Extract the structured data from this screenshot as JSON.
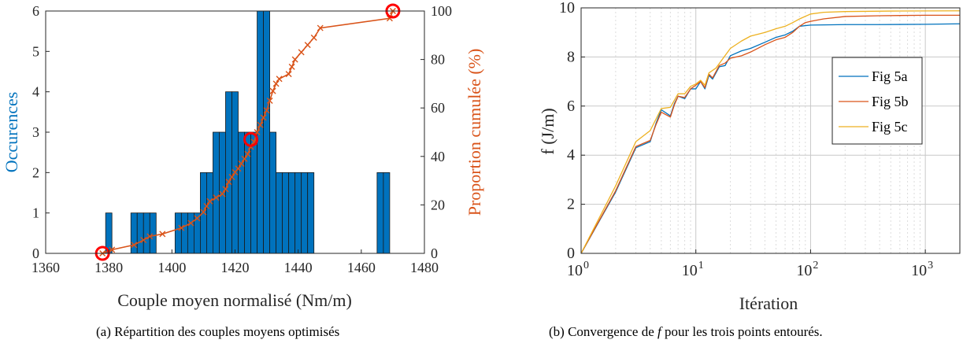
{
  "chart_data": [
    {
      "type": "bar",
      "xlabel": "Couple moyen normalisé (Nm/m)",
      "ylabel": "Occurences",
      "ylabel_right": "Proportion cumulée (%)",
      "xlim": [
        1360,
        1480
      ],
      "ylim": [
        0,
        6
      ],
      "ylim_right": [
        0,
        100
      ],
      "xticks": [
        "1360",
        "1380",
        "1400",
        "1420",
        "1440",
        "1460",
        "1480"
      ],
      "yticks": [
        "0",
        "1",
        "2",
        "3",
        "4",
        "5",
        "6"
      ],
      "yticks_right": [
        "0",
        "20",
        "40",
        "60",
        "80",
        "100"
      ],
      "bar_color": "#0072BD",
      "bin_width": 2,
      "bars": [
        {
          "x": 1380,
          "y": 1
        },
        {
          "x": 1388,
          "y": 1
        },
        {
          "x": 1390,
          "y": 1
        },
        {
          "x": 1392,
          "y": 1
        },
        {
          "x": 1394,
          "y": 1
        },
        {
          "x": 1402,
          "y": 1
        },
        {
          "x": 1404,
          "y": 1
        },
        {
          "x": 1406,
          "y": 1
        },
        {
          "x": 1408,
          "y": 1
        },
        {
          "x": 1410,
          "y": 2
        },
        {
          "x": 1412,
          "y": 2
        },
        {
          "x": 1414,
          "y": 3
        },
        {
          "x": 1416,
          "y": 3
        },
        {
          "x": 1418,
          "y": 4
        },
        {
          "x": 1420,
          "y": 4
        },
        {
          "x": 1422,
          "y": 3
        },
        {
          "x": 1424,
          "y": 3
        },
        {
          "x": 1426,
          "y": 3
        },
        {
          "x": 1428,
          "y": 6
        },
        {
          "x": 1430,
          "y": 6
        },
        {
          "x": 1432,
          "y": 3
        },
        {
          "x": 1434,
          "y": 2
        },
        {
          "x": 1436,
          "y": 2
        },
        {
          "x": 1438,
          "y": 2
        },
        {
          "x": 1440,
          "y": 2
        },
        {
          "x": 1442,
          "y": 2
        },
        {
          "x": 1444,
          "y": 2
        },
        {
          "x": 1466,
          "y": 2
        },
        {
          "x": 1468,
          "y": 2
        }
      ],
      "cumulative": {
        "color": "#D95319",
        "points": [
          [
            1378,
            0
          ],
          [
            1381,
            1.5
          ],
          [
            1388,
            3.5
          ],
          [
            1391,
            5.5
          ],
          [
            1393,
            7
          ],
          [
            1397,
            8
          ],
          [
            1403,
            10.5
          ],
          [
            1406,
            12.5
          ],
          [
            1408,
            14.5
          ],
          [
            1410,
            17
          ],
          [
            1411,
            19.5
          ],
          [
            1412,
            21.5
          ],
          [
            1414,
            23
          ],
          [
            1416,
            24.5
          ],
          [
            1417,
            26.5
          ],
          [
            1418,
            29.5
          ],
          [
            1419,
            31.5
          ],
          [
            1420,
            33.5
          ],
          [
            1421,
            35
          ],
          [
            1422,
            37
          ],
          [
            1423,
            39
          ],
          [
            1424,
            41
          ],
          [
            1425,
            44
          ],
          [
            1426,
            46
          ],
          [
            1427,
            50
          ],
          [
            1428,
            53
          ],
          [
            1429,
            56
          ],
          [
            1430,
            59
          ],
          [
            1431,
            63
          ],
          [
            1432,
            67
          ],
          [
            1433,
            70
          ],
          [
            1434,
            72
          ],
          [
            1437,
            74
          ],
          [
            1438,
            77
          ],
          [
            1439,
            80
          ],
          [
            1441,
            83
          ],
          [
            1443,
            86
          ],
          [
            1445,
            89
          ],
          [
            1447,
            93
          ],
          [
            1469,
            97
          ],
          [
            1470,
            100
          ]
        ],
        "circled": [
          [
            1378,
            0
          ],
          [
            1425,
            47
          ],
          [
            1470,
            100
          ]
        ],
        "circle_color": "#FF0000"
      }
    },
    {
      "type": "line",
      "xlabel": "Itération",
      "ylabel": "f (J/m)",
      "xscale": "log",
      "xlim": [
        1,
        2000
      ],
      "ylim": [
        0,
        10
      ],
      "yticks": [
        "0",
        "2",
        "4",
        "6",
        "8",
        "10"
      ],
      "xticks": [
        {
          "base": "10",
          "exp": "0"
        },
        {
          "base": "10",
          "exp": "1"
        },
        {
          "base": "10",
          "exp": "2"
        },
        {
          "base": "10",
          "exp": "3"
        }
      ],
      "grid": true,
      "legend_position": "right",
      "series": [
        {
          "name": "Fig 5a",
          "color": "#0072BD",
          "points": [
            [
              1,
              0
            ],
            [
              2,
              2.5
            ],
            [
              3,
              4.3
            ],
            [
              4,
              4.55
            ],
            [
              4.5,
              5.3
            ],
            [
              5,
              5.85
            ],
            [
              6,
              5.6
            ],
            [
              6.5,
              6.1
            ],
            [
              7,
              6.4
            ],
            [
              8,
              6.3
            ],
            [
              9,
              6.7
            ],
            [
              10,
              6.7
            ],
            [
              11,
              7.0
            ],
            [
              12,
              6.7
            ],
            [
              13,
              7.25
            ],
            [
              14,
              7.1
            ],
            [
              16,
              7.6
            ],
            [
              18,
              7.65
            ],
            [
              20,
              8.05
            ],
            [
              25,
              8.25
            ],
            [
              30,
              8.35
            ],
            [
              40,
              8.6
            ],
            [
              50,
              8.8
            ],
            [
              60,
              8.9
            ],
            [
              70,
              9.05
            ],
            [
              80,
              9.25
            ],
            [
              100,
              9.3
            ],
            [
              200,
              9.32
            ],
            [
              400,
              9.32
            ],
            [
              1000,
              9.33
            ],
            [
              2000,
              9.35
            ]
          ]
        },
        {
          "name": "Fig 5b",
          "color": "#D95319",
          "points": [
            [
              1,
              0
            ],
            [
              2,
              2.55
            ],
            [
              3,
              4.35
            ],
            [
              4,
              4.6
            ],
            [
              4.5,
              5.25
            ],
            [
              5,
              5.75
            ],
            [
              6,
              5.55
            ],
            [
              6.5,
              6.05
            ],
            [
              7,
              6.4
            ],
            [
              8,
              6.35
            ],
            [
              9,
              6.7
            ],
            [
              10,
              6.85
            ],
            [
              11,
              7.0
            ],
            [
              12,
              6.75
            ],
            [
              13,
              7.3
            ],
            [
              14,
              7.15
            ],
            [
              16,
              7.65
            ],
            [
              18,
              7.75
            ],
            [
              20,
              7.95
            ],
            [
              25,
              8.05
            ],
            [
              30,
              8.2
            ],
            [
              40,
              8.5
            ],
            [
              50,
              8.7
            ],
            [
              60,
              8.8
            ],
            [
              70,
              9.0
            ],
            [
              80,
              9.25
            ],
            [
              90,
              9.4
            ],
            [
              100,
              9.45
            ],
            [
              130,
              9.55
            ],
            [
              200,
              9.65
            ],
            [
              400,
              9.68
            ],
            [
              1000,
              9.7
            ],
            [
              2000,
              9.7
            ]
          ]
        },
        {
          "name": "Fig 5c",
          "color": "#EDB120",
          "points": [
            [
              1,
              0
            ],
            [
              2,
              2.75
            ],
            [
              3,
              4.55
            ],
            [
              4,
              5.0
            ],
            [
              5,
              5.9
            ],
            [
              6,
              5.95
            ],
            [
              7,
              6.5
            ],
            [
              8,
              6.5
            ],
            [
              9,
              6.8
            ],
            [
              10,
              6.9
            ],
            [
              11,
              7.05
            ],
            [
              12,
              6.85
            ],
            [
              13,
              7.35
            ],
            [
              15,
              7.55
            ],
            [
              17,
              7.9
            ],
            [
              20,
              8.35
            ],
            [
              25,
              8.65
            ],
            [
              30,
              8.85
            ],
            [
              40,
              9.0
            ],
            [
              50,
              9.15
            ],
            [
              60,
              9.25
            ],
            [
              70,
              9.4
            ],
            [
              80,
              9.55
            ],
            [
              100,
              9.75
            ],
            [
              130,
              9.82
            ],
            [
              200,
              9.85
            ],
            [
              500,
              9.87
            ],
            [
              2000,
              9.88
            ]
          ]
        }
      ]
    }
  ],
  "captions": {
    "a": "(a) Répartition des couples moyens optimisés",
    "b_before": "(b) Convergence de",
    "b_italic": "f",
    "b_after": "pour les trois points entourés."
  }
}
